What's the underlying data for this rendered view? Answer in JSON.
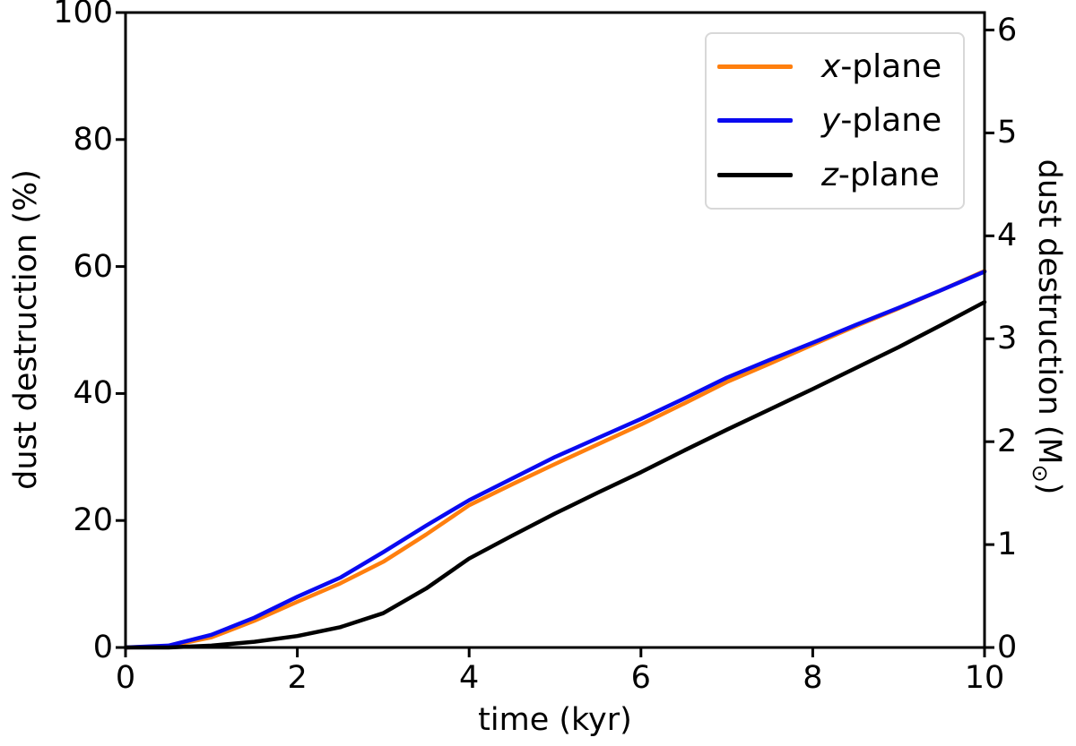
{
  "chart_data": {
    "type": "line",
    "title": "",
    "xlabel": "time (kyr)",
    "ylabel_left": "dust destruction (%)",
    "ylabel_right_prefix": "dust destruction (M",
    "ylabel_right_sub": "⊙",
    "ylabel_right_suffix": ")",
    "xlim": [
      0,
      10
    ],
    "ylim_left": [
      0,
      100
    ],
    "ylim_right": [
      0,
      6.17
    ],
    "xticks": [
      0,
      2,
      4,
      6,
      8,
      10
    ],
    "yticks_left": [
      0,
      20,
      40,
      60,
      80,
      100
    ],
    "yticks_right": [
      0,
      1,
      2,
      3,
      4,
      5,
      6
    ],
    "grid": false,
    "legend_position": "upper right",
    "x": [
      0,
      0.5,
      1,
      1.5,
      2,
      2.5,
      3,
      3.5,
      4,
      4.5,
      5,
      5.5,
      6,
      6.5,
      7,
      7.5,
      8,
      8.5,
      9,
      9.5,
      10
    ],
    "series": [
      {
        "name": "x-plane",
        "color": "#ff7f0e",
        "values": [
          0,
          0.2,
          1.6,
          4.2,
          7.2,
          10.1,
          13.5,
          17.8,
          22.4,
          25.7,
          28.9,
          32.0,
          35.1,
          38.4,
          41.8,
          44.7,
          47.7,
          50.6,
          53.4,
          56.3,
          59.3
        ]
      },
      {
        "name": "y-plane",
        "color": "#0a0af0",
        "values": [
          0,
          0.3,
          2.0,
          4.7,
          8.0,
          11.0,
          15.0,
          19.2,
          23.2,
          26.6,
          30.0,
          33.0,
          36.0,
          39.2,
          42.5,
          45.3,
          48.0,
          50.8,
          53.5,
          56.3,
          59.2
        ]
      },
      {
        "name": "z-plane",
        "color": "#000000",
        "values": [
          0,
          0.0,
          0.3,
          0.9,
          1.8,
          3.2,
          5.4,
          9.3,
          14.0,
          17.6,
          21.1,
          24.4,
          27.6,
          31.0,
          34.3,
          37.5,
          40.7,
          44.0,
          47.3,
          50.8,
          54.4
        ]
      }
    ]
  },
  "legend": {
    "items": [
      {
        "symbol": "x",
        "suffix": "-plane",
        "color": "#ff7f0e"
      },
      {
        "symbol": "y",
        "suffix": "-plane",
        "color": "#0a0af0"
      },
      {
        "symbol": "z",
        "suffix": "-plane",
        "color": "#000000"
      }
    ]
  }
}
